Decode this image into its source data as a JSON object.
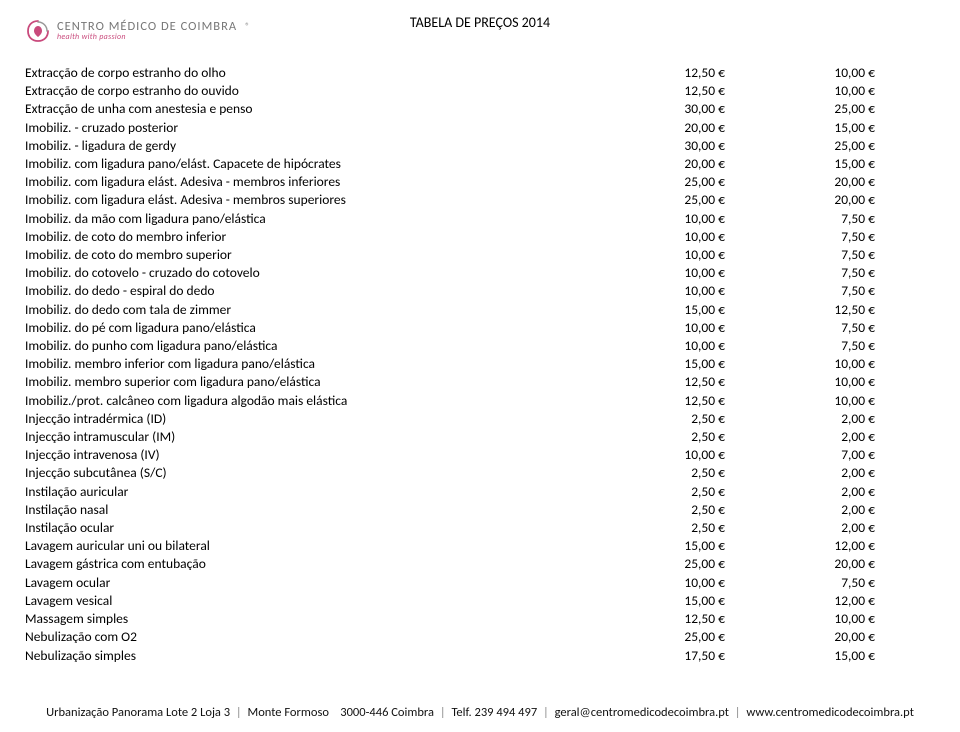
{
  "header": {
    "logo_main": "CENTRO MÉDICO DE COIMBRA",
    "logo_sub": "health with passion",
    "logo_reg": "®",
    "page_title": "TABELA DE PREÇOS 2014"
  },
  "rows": [
    {
      "desc": "Extracção de corpo estranho do olho",
      "p1": "12,50 €",
      "p2": "10,00 €"
    },
    {
      "desc": "Extracção de corpo estranho do ouvido",
      "p1": "12,50 €",
      "p2": "10,00 €"
    },
    {
      "desc": "Extracção de unha com anestesia e penso",
      "p1": "30,00 €",
      "p2": "25,00 €"
    },
    {
      "desc": "Imobiliz. - cruzado posterior",
      "p1": "20,00 €",
      "p2": "15,00 €"
    },
    {
      "desc": "Imobiliz. - ligadura de gerdy",
      "p1": "30,00 €",
      "p2": "25,00 €"
    },
    {
      "desc": "Imobiliz. com ligadura pano/elást. Capacete de hipócrates",
      "p1": "20,00 €",
      "p2": "15,00 €"
    },
    {
      "desc": "Imobiliz. com ligadura elást. Adesiva - membros inferiores",
      "p1": "25,00 €",
      "p2": "20,00 €"
    },
    {
      "desc": "Imobiliz. com ligadura elást. Adesiva - membros superiores",
      "p1": "25,00 €",
      "p2": "20,00 €"
    },
    {
      "desc": "Imobiliz. da mão com ligadura pano/elástica",
      "p1": "10,00 €",
      "p2": "7,50 €"
    },
    {
      "desc": "Imobiliz. de coto do membro inferior",
      "p1": "10,00 €",
      "p2": "7,50 €"
    },
    {
      "desc": "Imobiliz. de coto do membro superior",
      "p1": "10,00 €",
      "p2": "7,50 €"
    },
    {
      "desc": "Imobiliz. do cotovelo - cruzado do cotovelo",
      "p1": "10,00 €",
      "p2": "7,50 €"
    },
    {
      "desc": "Imobiliz. do dedo - espiral do dedo",
      "p1": "10,00 €",
      "p2": "7,50 €"
    },
    {
      "desc": "Imobiliz. do dedo com tala de zimmer",
      "p1": "15,00 €",
      "p2": "12,50 €"
    },
    {
      "desc": "Imobiliz. do pé com ligadura pano/elástica",
      "p1": "10,00 €",
      "p2": "7,50 €"
    },
    {
      "desc": "Imobiliz. do punho com ligadura pano/elástica",
      "p1": "10,00 €",
      "p2": "7,50 €"
    },
    {
      "desc": "Imobiliz. membro inferior com ligadura pano/elástica",
      "p1": "15,00 €",
      "p2": "10,00 €"
    },
    {
      "desc": "Imobiliz. membro superior com ligadura pano/elástica",
      "p1": "12,50 €",
      "p2": "10,00 €"
    },
    {
      "desc": "Imobiliz./prot. calcâneo com ligadura algodão mais elástica",
      "p1": "12,50 €",
      "p2": "10,00 €"
    },
    {
      "desc": "Injecção intradérmica (ID)",
      "p1": "2,50 €",
      "p2": "2,00 €"
    },
    {
      "desc": "Injecção intramuscular (IM)",
      "p1": "2,50 €",
      "p2": "2,00 €"
    },
    {
      "desc": "Injecção intravenosa (IV)",
      "p1": "10,00 €",
      "p2": "7,00 €"
    },
    {
      "desc": "Injecção subcutânea (S/C)",
      "p1": "2,50 €",
      "p2": "2,00 €"
    },
    {
      "desc": "Instilação auricular",
      "p1": "2,50 €",
      "p2": "2,00 €"
    },
    {
      "desc": "Instilação nasal",
      "p1": "2,50 €",
      "p2": "2,00 €"
    },
    {
      "desc": "Instilação ocular",
      "p1": "2,50 €",
      "p2": "2,00 €"
    },
    {
      "desc": "Lavagem auricular uni ou bilateral",
      "p1": "15,00 €",
      "p2": "12,00 €"
    },
    {
      "desc": "Lavagem gástrica com entubação",
      "p1": "25,00 €",
      "p2": "20,00 €"
    },
    {
      "desc": "Lavagem ocular",
      "p1": "10,00 €",
      "p2": "7,50 €"
    },
    {
      "desc": "Lavagem vesical",
      "p1": "15,00 €",
      "p2": "12,00 €"
    },
    {
      "desc": "Massagem simples",
      "p1": "12,50 €",
      "p2": "10,00 €"
    },
    {
      "desc": "Nebulização com O2",
      "p1": "25,00 €",
      "p2": "20,00 €"
    },
    {
      "desc": "Nebulização simples",
      "p1": "17,50 €",
      "p2": "15,00 €"
    }
  ],
  "footer": {
    "addr1": "Urbanização Panorama Lote 2 Loja 3",
    "addr2": "Monte Formoso",
    "addr3": "3000-446 Coimbra",
    "tel": "Telf. 239 494 497",
    "email": "geral@centromedicodecoimbra.pt",
    "web": "www.centromedicodecoimbra.pt",
    "sep": "|"
  }
}
